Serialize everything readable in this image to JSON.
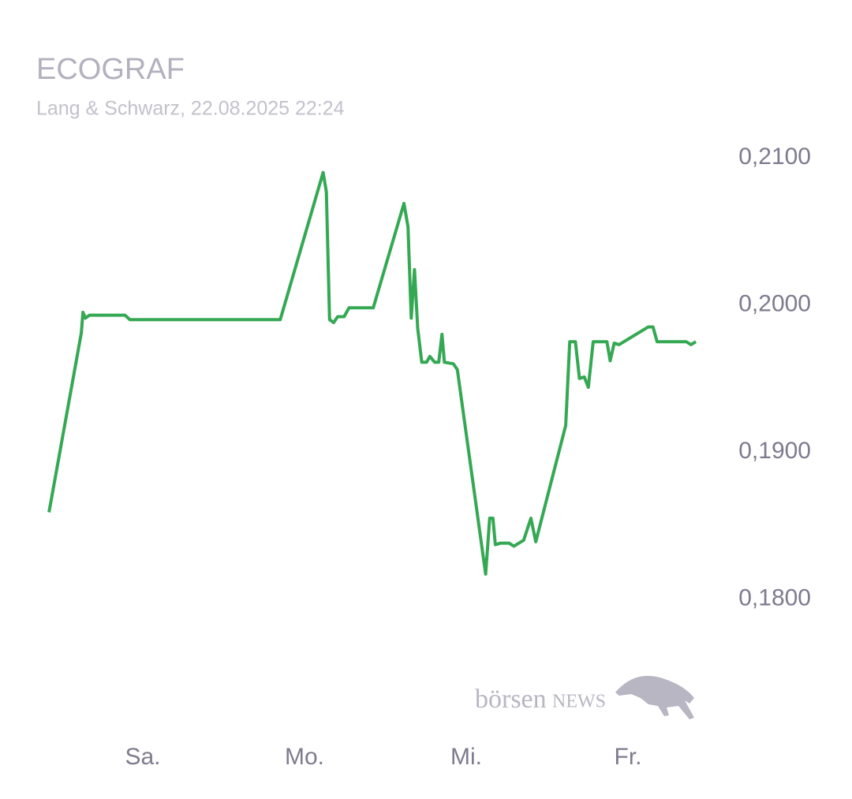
{
  "chart_data": {
    "type": "line",
    "title": "ECOGRAF",
    "subtitle": "Lang & Schwarz, 22.08.2025 22:24",
    "watermark": [
      "börsen",
      "NEWS"
    ],
    "grid": false,
    "xlim": [
      -0.3,
      8.5
    ],
    "xticks": [
      {
        "value": 1,
        "label": "Sa."
      },
      {
        "value": 3,
        "label": "Mo."
      },
      {
        "value": 5,
        "label": "Mi."
      },
      {
        "value": 7,
        "label": "Fr."
      }
    ],
    "ylim": [
      0.175,
      0.2115
    ],
    "yticks": [
      {
        "value": 0.21,
        "label": "0,2100"
      },
      {
        "value": 0.2,
        "label": "0,2000"
      },
      {
        "value": 0.19,
        "label": "0,1900"
      },
      {
        "value": 0.18,
        "label": "0,1800"
      }
    ],
    "x": [
      -0.16,
      0.24,
      0.26,
      0.29,
      0.34,
      0.78,
      0.84,
      2.7,
      3.23,
      3.27,
      3.31,
      3.36,
      3.41,
      3.49,
      3.55,
      3.85,
      4.23,
      4.28,
      4.32,
      4.36,
      4.4,
      4.45,
      4.51,
      4.55,
      4.61,
      4.66,
      4.7,
      4.73,
      4.84,
      4.89,
      5.24,
      5.29,
      5.33,
      5.36,
      5.42,
      5.53,
      5.59,
      5.71,
      5.8,
      5.86,
      6.23,
      6.28,
      6.35,
      6.4,
      6.46,
      6.51,
      6.57,
      6.74,
      6.78,
      6.83,
      6.89,
      7.25,
      7.31,
      7.36,
      7.72,
      7.78,
      7.84
    ],
    "series": [
      {
        "color": "#34a853",
        "values": [
          0.1859,
          0.1981,
          0.1995,
          0.1991,
          0.1993,
          0.1993,
          0.199,
          0.199,
          0.209,
          0.2077,
          0.199,
          0.1988,
          0.1992,
          0.1992,
          0.1998,
          0.1998,
          0.2069,
          0.2053,
          0.1991,
          0.2024,
          0.1984,
          0.1961,
          0.1961,
          0.1965,
          0.1961,
          0.1961,
          0.198,
          0.1961,
          0.196,
          0.1956,
          0.1817,
          0.1855,
          0.1855,
          0.1837,
          0.1838,
          0.1838,
          0.1836,
          0.184,
          0.1855,
          0.1839,
          0.1918,
          0.1975,
          0.1975,
          0.195,
          0.1951,
          0.1944,
          0.1975,
          0.1975,
          0.1962,
          0.1974,
          0.1973,
          0.1985,
          0.1985,
          0.1975,
          0.1975,
          0.1973,
          0.1975
        ]
      }
    ]
  }
}
